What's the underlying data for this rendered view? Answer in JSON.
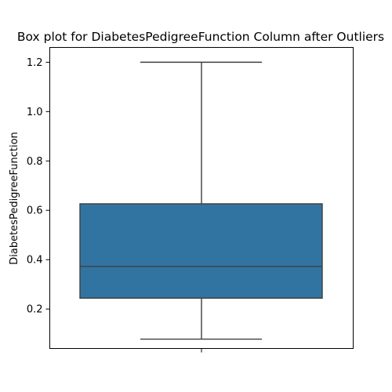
{
  "chart_data": {
    "type": "box",
    "title": "Box plot for DiabetesPedigreeFunction Column after Outliers",
    "xlabel": "",
    "ylabel": "DiabetesPedigreeFunction",
    "ylim": [
      0.04,
      1.26
    ],
    "yticks": [
      0.2,
      0.4,
      0.6,
      0.8,
      1.0,
      1.2
    ],
    "ytick_labels": [
      "0.2",
      "0.4",
      "0.6",
      "0.8",
      "1.0",
      "1.2"
    ],
    "box": {
      "whisker_low": 0.078,
      "q1": 0.244,
      "median": 0.3725,
      "q3": 0.6263,
      "whisker_high": 1.2
    },
    "grid": false,
    "colors": {
      "box_fill": "#3274a1",
      "line": "#3f3f3f"
    }
  }
}
